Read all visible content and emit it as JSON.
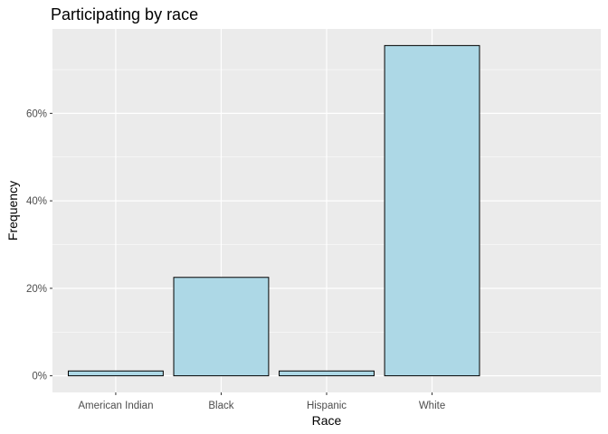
{
  "chart_data": {
    "type": "bar",
    "title": "Participating by race",
    "xlabel": "Race",
    "ylabel": "Frequency",
    "categories": [
      "American Indian",
      "Black",
      "Hispanic",
      "White"
    ],
    "values": [
      1.1,
      22.5,
      1.1,
      75.5
    ],
    "value_unit": "percent",
    "yticks": [
      0,
      20,
      40,
      60
    ],
    "ytick_labels": [
      "0%",
      "20%",
      "40%",
      "60%"
    ],
    "ylim": [
      -3.8,
      79.3
    ],
    "grid": true,
    "legend": "none",
    "colors": {
      "bar_fill": "#add8e6",
      "bar_stroke": "#000000",
      "panel_background": "#ebebeb",
      "grid": "#ffffff"
    }
  }
}
